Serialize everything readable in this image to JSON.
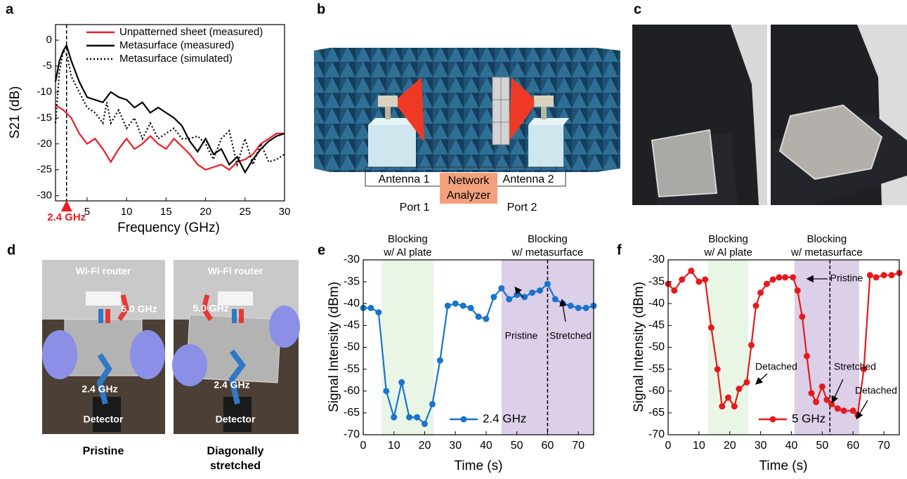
{
  "panel_labels": [
    "a",
    "b",
    "c",
    "d",
    "e",
    "f"
  ],
  "diagram_b": {
    "antenna_1": "Antenna 1",
    "antenna_2": "Antenna 2",
    "analyzer": [
      "Network",
      "Analyzer"
    ],
    "port_1": "Port 1",
    "port_2": "Port 2"
  },
  "photos_d": [
    {
      "router": "Wi-Fi router",
      "band_high": "5.0 GHz",
      "band_low": "2.4 GHz",
      "detector": "Detector",
      "caption": [
        "Pristine"
      ]
    },
    {
      "router": "Wi-Fi router",
      "band_high": "5.0 GHz",
      "band_low": "2.4 GHz",
      "detector": "Detector",
      "caption": [
        "Diagonally",
        "stretched"
      ]
    }
  ],
  "chart_data": [
    {
      "type": "line",
      "xlabel": "Frequency (GHz)",
      "ylabel": "S21 (dB)",
      "xlim": [
        1,
        30
      ],
      "ylim": [
        -31,
        3
      ],
      "xticks": [
        5,
        10,
        15,
        20,
        25,
        30
      ],
      "yticks": [
        -30,
        -25,
        -20,
        -15,
        -10,
        -5,
        0
      ],
      "grid": false,
      "legend": "upper right",
      "vline": 2.4,
      "vline_label": "2.4 GHz",
      "series": [
        {
          "name": "Unpatterned sheet (measured)",
          "color": "#ee1c25",
          "style": "solid",
          "marker": "none",
          "x": [
            1,
            2,
            3,
            4,
            5,
            6,
            7,
            8,
            9,
            10,
            11,
            12,
            13,
            14,
            15,
            16,
            17,
            18,
            19,
            20,
            21,
            22,
            23,
            24,
            25,
            26,
            27,
            28,
            29,
            30
          ],
          "values": [
            -12.5,
            -13.5,
            -15,
            -18,
            -20,
            -19,
            -21,
            -23.5,
            -21,
            -19,
            -21,
            -20,
            -18.5,
            -20,
            -21,
            -19,
            -20.5,
            -22,
            -24,
            -25,
            -24.5,
            -24,
            -25,
            -23.5,
            -23,
            -22,
            -20,
            -19,
            -18,
            -18
          ]
        },
        {
          "name": "Metasurface (measured)",
          "color": "#000000",
          "style": "solid",
          "marker": "none",
          "x": [
            1,
            1.5,
            2,
            2.4,
            3,
            4,
            5,
            6,
            7,
            8,
            9,
            10,
            11,
            12,
            13,
            14,
            15,
            16,
            17,
            18,
            19,
            20,
            21,
            22,
            23,
            24,
            25,
            26,
            27,
            28,
            29,
            30
          ],
          "values": [
            -8,
            -4,
            -2,
            -1,
            -4,
            -8,
            -11,
            -11.5,
            -12,
            -10,
            -11,
            -11.5,
            -13,
            -12,
            -14,
            -13,
            -14,
            -15,
            -16.5,
            -19.5,
            -21.5,
            -19,
            -22,
            -21,
            -24,
            -22.5,
            -25.5,
            -23,
            -21,
            -19.5,
            -18.5,
            -18
          ]
        },
        {
          "name": "Metasurface (simulated)",
          "color": "#000000",
          "style": "dotted",
          "marker": "none",
          "x": [
            1,
            1.5,
            2,
            2.5,
            3,
            4,
            5,
            6,
            7,
            7.5,
            8,
            9,
            10,
            11,
            12,
            13,
            14,
            15,
            16,
            17,
            18,
            19,
            20,
            21,
            22,
            23,
            24,
            25,
            26,
            27,
            28,
            29,
            30
          ],
          "values": [
            -16,
            -6,
            -2,
            -3,
            -7,
            -10,
            -13,
            -14,
            -16,
            -12,
            -16,
            -13.5,
            -17,
            -15,
            -19,
            -16,
            -19,
            -18,
            -17,
            -19,
            -19,
            -18.5,
            -20,
            -23,
            -19,
            -17.5,
            -24,
            -19,
            -24,
            -20,
            -23.5,
            -23,
            -22
          ]
        }
      ]
    },
    {
      "type": "line",
      "xlabel": "Time (s)",
      "ylabel": "Signal Intensity (dBm)",
      "xlim": [
        0,
        75
      ],
      "ylim": [
        -70,
        -30
      ],
      "xticks": [
        0,
        10,
        20,
        30,
        40,
        50,
        60,
        70
      ],
      "yticks": [
        -70,
        -65,
        -60,
        -55,
        -50,
        -45,
        -40,
        -35,
        -30
      ],
      "grid": false,
      "legend": "lower right",
      "vline": 60,
      "spans": [
        {
          "x0": 6,
          "x1": 23,
          "color": "#eaf6e5",
          "label": [
            "Blocking",
            "w/ Al plate"
          ]
        },
        {
          "x0": 45,
          "x1": 75,
          "color": "#dccfe8",
          "label": [
            "Blocking",
            "w/ metasurface"
          ]
        }
      ],
      "annotations": [
        "Pristine",
        "Stretched"
      ],
      "series": [
        {
          "name": "2.4 GHz",
          "color": "#1874cd",
          "style": "solid",
          "marker": "circle",
          "x": [
            0,
            2.5,
            5,
            7.5,
            10,
            12.5,
            15,
            17.5,
            20,
            22.5,
            25,
            27.5,
            30,
            32.5,
            35,
            37.5,
            40,
            42.5,
            45,
            47.5,
            50,
            52.5,
            55,
            57.5,
            60,
            62.5,
            65,
            67.5,
            70,
            72.5,
            75
          ],
          "values": [
            -41,
            -41,
            -42,
            -60,
            -66,
            -58,
            -66,
            -66,
            -67.5,
            -63,
            -53,
            -40.5,
            -40,
            -40.5,
            -41,
            -43,
            -43.5,
            -38.5,
            -36.5,
            -39,
            -38,
            -38.5,
            -37.5,
            -37,
            -35.5,
            -39,
            -40,
            -40.5,
            -41,
            -41,
            -40.5
          ]
        }
      ]
    },
    {
      "type": "line",
      "xlabel": "Time (s)",
      "ylabel": "Signal Intensity (dBm)",
      "xlim": [
        0,
        75
      ],
      "ylim": [
        -70,
        -30
      ],
      "xticks": [
        0,
        10,
        20,
        30,
        40,
        50,
        60,
        70
      ],
      "yticks": [
        -70,
        -65,
        -60,
        -55,
        -50,
        -45,
        -40,
        -35,
        -30
      ],
      "grid": false,
      "legend": "lower right",
      "vline": 52.5,
      "spans": [
        {
          "x0": 13,
          "x1": 26,
          "color": "#eaf6e5",
          "label": [
            "Blocking",
            "w/ Al plate"
          ]
        },
        {
          "x0": 41,
          "x1": 62,
          "color": "#dccfe8",
          "label": [
            "Blocking",
            "w/ metasurface"
          ]
        }
      ],
      "annotations": [
        "Pristine",
        "Detached",
        "Stretched",
        "Detached"
      ],
      "series": [
        {
          "name": "5 GHz",
          "color": "#e41a1c",
          "style": "solid",
          "marker": "circle",
          "x": [
            0,
            2,
            4.5,
            7.5,
            10,
            12,
            14,
            16,
            17.5,
            19.5,
            21.5,
            23,
            25.5,
            27,
            28.5,
            30,
            32,
            34,
            36,
            38,
            40.5,
            42,
            43.5,
            45,
            46.5,
            48,
            50,
            51.5,
            53,
            55,
            57,
            60,
            61.5,
            63.5,
            65.5,
            67.5,
            70,
            72.5,
            75
          ],
          "values": [
            -35.5,
            -37,
            -34.5,
            -32.5,
            -35,
            -34.5,
            -45.5,
            -55,
            -63.5,
            -61.5,
            -63.5,
            -59.5,
            -58,
            -49.5,
            -40.5,
            -37.5,
            -35.5,
            -34.5,
            -34,
            -34,
            -34,
            -37,
            -43,
            -52,
            -60.5,
            -62.5,
            -59,
            -62,
            -63,
            -64,
            -64.5,
            -64.5,
            -65.5,
            -55,
            -33.5,
            -34,
            -33.5,
            -33.5,
            -33
          ]
        }
      ]
    }
  ]
}
